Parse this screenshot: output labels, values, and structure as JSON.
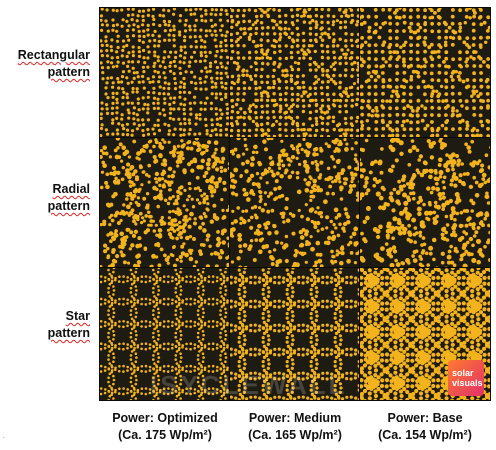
{
  "rows": [
    {
      "id": "rectangular",
      "lines": [
        "Rectangular",
        "pattern"
      ]
    },
    {
      "id": "radial",
      "lines": [
        "Radial",
        "pattern"
      ]
    },
    {
      "id": "star",
      "lines": [
        "Star",
        "pattern"
      ]
    }
  ],
  "columns": [
    {
      "id": "optimized",
      "lines": [
        "Power: Optimized",
        "(Ca. 175 Wp/m²)"
      ]
    },
    {
      "id": "medium",
      "lines": [
        "Power: Medium",
        "(Ca. 165 Wp/m²)"
      ]
    },
    {
      "id": "base",
      "lines": [
        "Power: Base",
        "(Ca. 154 Wp/m²)"
      ]
    }
  ],
  "logo": {
    "line1": "solar",
    "line2": "visuals"
  },
  "watermark": "ISYCLEWALL",
  "colors": {
    "dot": "#f2b31d",
    "background": "#1e1b12"
  }
}
